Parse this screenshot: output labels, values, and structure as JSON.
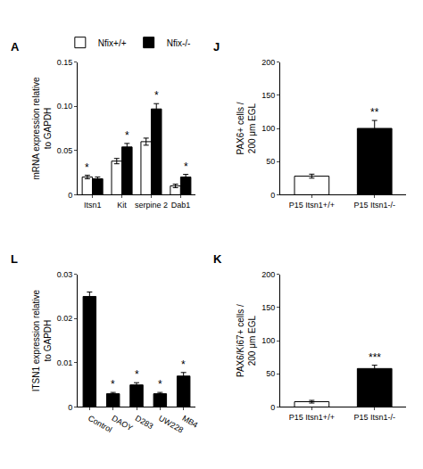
{
  "chart_data": [
    {
      "type": "bar",
      "title": "A",
      "categories": [
        "Itsn1",
        "Kit",
        "serpine 2",
        "Dab1"
      ],
      "series": [
        {
          "name": "Nfix+/+",
          "color": "#ffffff",
          "values": [
            0.02,
            0.038,
            0.06,
            0.01
          ],
          "errors": [
            0.002,
            0.003,
            0.004,
            0.002
          ]
        },
        {
          "name": "Nfix-/-",
          "color": "#000000",
          "values": [
            0.018,
            0.054,
            0.097,
            0.02
          ],
          "errors": [
            0.002,
            0.004,
            0.006,
            0.003
          ]
        }
      ],
      "y_label": "mRNA expression relative\nto GAPDH",
      "ylim": [
        0,
        0.15
      ],
      "yticks": [
        0,
        0.05,
        {
          "value": 0.1,
          "label": "0.10"
        },
        0.15
      ],
      "legend": "upper right",
      "grid": false,
      "annotations": [
        {
          "text": "*",
          "category": "Itsn1",
          "series": "Nfix+/+"
        },
        {
          "text": "*",
          "category": "Kit",
          "series": "Nfix-/-"
        },
        {
          "text": "*",
          "category": "serpine 2",
          "series": "Nfix-/-"
        },
        {
          "text": "*",
          "category": "Dab1",
          "series": "Nfix-/-"
        }
      ]
    },
    {
      "type": "bar",
      "title": "J",
      "categories": [
        "P15 Itsn1+/+",
        "P15 Itsn1-/-"
      ],
      "values": [
        28,
        100
      ],
      "errors": [
        3,
        12
      ],
      "colors": [
        "#ffffff",
        "#000000"
      ],
      "y_label": "PAX6+ cells /\n200 μm EGL",
      "ylim": [
        0,
        200
      ],
      "yticks": [
        0,
        50,
        100,
        150,
        200
      ],
      "grid": false,
      "annotations": [
        {
          "text": "**",
          "category": "P15 Itsn1-/-"
        }
      ]
    },
    {
      "type": "bar",
      "title": "K",
      "categories": [
        "P15 Itsn1+/+",
        "P15 Itsn1-/-"
      ],
      "values": [
        8,
        58
      ],
      "errors": [
        2,
        5
      ],
      "colors": [
        "#ffffff",
        "#000000"
      ],
      "y_label": "PAX6/Ki67+ cells /\n200 μm EGL",
      "ylim": [
        0,
        200
      ],
      "yticks": [
        0,
        50,
        100,
        150,
        200
      ],
      "grid": false,
      "annotations": [
        {
          "text": "***",
          "category": "P15 Itsn1-/-"
        }
      ]
    },
    {
      "type": "bar",
      "title": "L",
      "categories": [
        "Control",
        "DAOY",
        "D283",
        "UW228",
        "MB4"
      ],
      "values": [
        0.025,
        0.003,
        0.005,
        0.003,
        0.007
      ],
      "errors": [
        0.001,
        0.0003,
        0.0005,
        0.0003,
        0.0008
      ],
      "color": "#000000",
      "y_label": "ITSN1 expression relative\nto GAPDH",
      "ylim": [
        0,
        0.03
      ],
      "yticks": [
        0,
        0.01,
        0.02,
        0.03
      ],
      "grid": false,
      "annotations": [
        {
          "text": "*",
          "category": "DAOY"
        },
        {
          "text": "*",
          "category": "D283"
        },
        {
          "text": "*",
          "category": "UW228"
        },
        {
          "text": "*",
          "category": "MB4"
        }
      ]
    }
  ]
}
